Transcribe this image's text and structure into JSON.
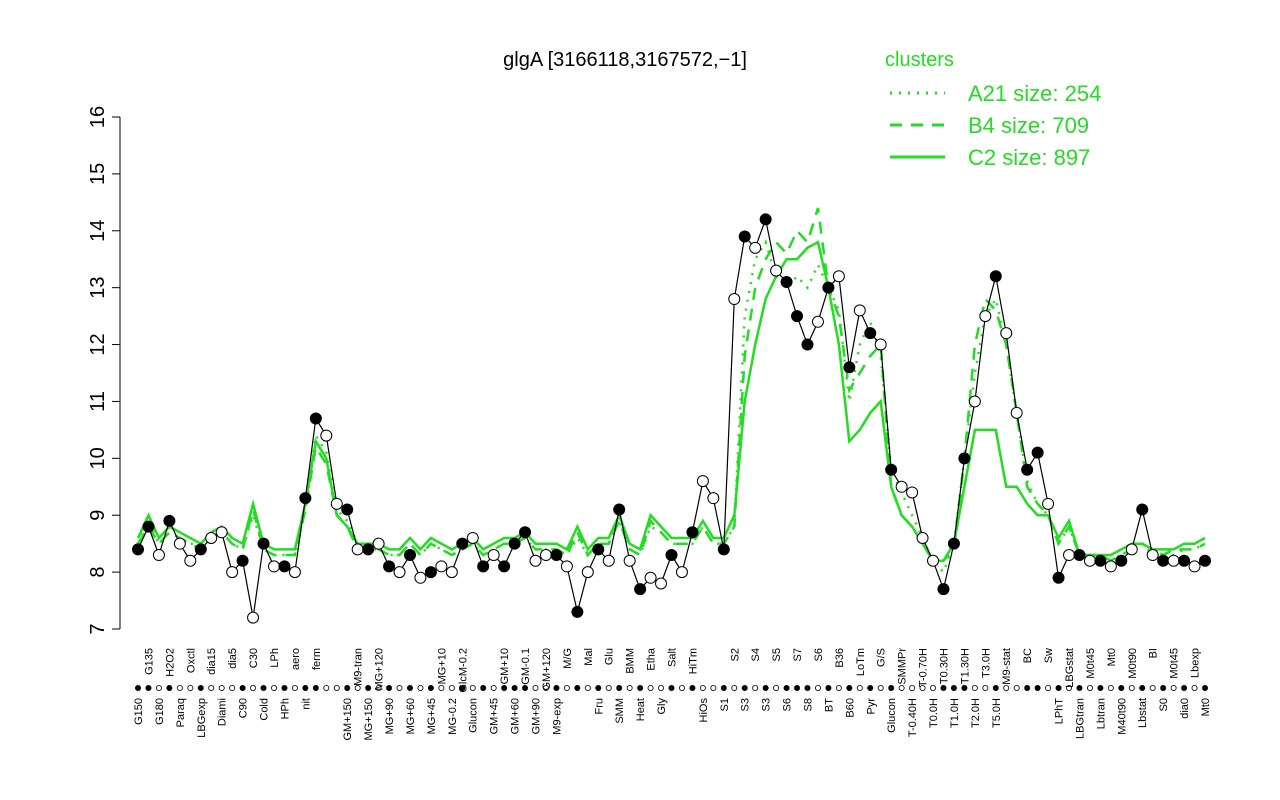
{
  "chart_data": {
    "type": "line",
    "title": "glgA [3166118,3167572,−1]",
    "ylim": [
      7,
      16
    ],
    "yticks": [
      7,
      8,
      9,
      10,
      11,
      12,
      13,
      14,
      15,
      16
    ],
    "legend_title": "clusters",
    "legend_position": "top-right",
    "categories": [
      "G150",
      "G135",
      "G180",
      "H2O2",
      "Paraq",
      "Oxctl",
      "LBGexp",
      "dia15",
      "Diami",
      "dia5",
      "C90",
      "C30",
      "Cold",
      "LPh",
      "HPh",
      "aero",
      "nit",
      "ferm",
      null,
      null,
      "GM+150",
      "M9-tran",
      "MG+150",
      "MG+120",
      "MG+90",
      null,
      "MG+60",
      null,
      "MG+45",
      "MG+10",
      "MG-0.2",
      "GlcM-0.2",
      "Glucon",
      null,
      "GM+45",
      "GM+10",
      "GM+60",
      "GM-0.1",
      "GM+90",
      "GM+120",
      "M9-exp",
      "M/G",
      null,
      "Mal",
      "Fru",
      "Glu",
      "SMM",
      "BMM",
      "Heat",
      "Etha",
      "Gly",
      "Salt",
      null,
      "HiTm",
      "HiOs",
      null,
      "S1",
      "S2",
      "S3",
      "S4",
      "S3",
      "S5",
      "S6",
      "S7",
      "S8",
      "S6",
      "BT",
      "B36",
      "B60",
      "LoTm",
      "Pyr",
      "G/S",
      "Glucon",
      "SMMPr",
      "T-0.40H",
      "T-0.70H",
      "T0.0H",
      "T0.30H",
      "T1.0H",
      "T1.30H",
      "T2.0H",
      "T3.0H",
      "T5.0H",
      "M9-stat",
      null,
      "BC",
      null,
      "Sw",
      "LPhT",
      "LBGstat",
      "LBGtran",
      "M0t45",
      "Lbtran",
      "Mt0",
      "M40t90",
      "M0t90",
      "Lbstat",
      "BI",
      "S0",
      "M0t45",
      "dia0",
      "Lbexp",
      "Mt0"
    ],
    "values": [
      8.4,
      8.8,
      8.3,
      8.9,
      8.5,
      8.2,
      8.4,
      8.6,
      8.7,
      8.0,
      8.2,
      7.2,
      8.5,
      8.1,
      8.1,
      8.0,
      9.3,
      10.7,
      10.4,
      9.2,
      9.1,
      8.4,
      8.4,
      8.5,
      8.1,
      8.0,
      8.3,
      7.9,
      8.0,
      8.1,
      8.0,
      8.5,
      8.6,
      8.1,
      8.3,
      8.1,
      8.5,
      8.7,
      8.2,
      8.3,
      8.3,
      8.1,
      7.3,
      8.0,
      8.4,
      8.2,
      9.1,
      8.2,
      7.7,
      7.9,
      7.8,
      8.3,
      8.0,
      8.7,
      9.6,
      9.3,
      8.4,
      12.8,
      13.9,
      13.7,
      14.2,
      13.3,
      13.1,
      12.5,
      12.0,
      12.4,
      13.0,
      13.2,
      11.6,
      12.6,
      12.2,
      12.0,
      9.8,
      9.5,
      9.4,
      8.6,
      8.2,
      7.7,
      8.5,
      10.0,
      11.0,
      12.5,
      13.2,
      12.2,
      10.8,
      9.8,
      10.1,
      9.2,
      7.9,
      8.3,
      8.3,
      8.2,
      8.2,
      8.1,
      8.2,
      8.4,
      9.1,
      8.3,
      8.2,
      8.2,
      8.2,
      8.1,
      8.2
    ],
    "filled": [
      1,
      1,
      0,
      1,
      0,
      0,
      1,
      0,
      0,
      0,
      1,
      0,
      1,
      0,
      1,
      0,
      1,
      1,
      0,
      0,
      1,
      0,
      1,
      0,
      1,
      0,
      1,
      0,
      1,
      0,
      0,
      1,
      0,
      1,
      0,
      1,
      1,
      1,
      0,
      0,
      1,
      0,
      1,
      0,
      1,
      0,
      1,
      0,
      1,
      0,
      0,
      1,
      0,
      1,
      0,
      0,
      1,
      0,
      1,
      0,
      1,
      0,
      1,
      1,
      1,
      0,
      1,
      0,
      1,
      0,
      1,
      0,
      1,
      0,
      0,
      0,
      0,
      1,
      1,
      1,
      0,
      0,
      1,
      0,
      0,
      1,
      1,
      0,
      1,
      0,
      1,
      0,
      1,
      0,
      1,
      0,
      1,
      0,
      1,
      0,
      1,
      0,
      1
    ],
    "color": "#000000",
    "series": [
      {
        "name": "A21 size: 254",
        "style": "dotted",
        "color": "#22dd22",
        "values": [
          8.5,
          8.9,
          8.5,
          8.7,
          8.6,
          8.5,
          8.5,
          8.6,
          8.7,
          8.5,
          8.4,
          9.0,
          8.4,
          8.3,
          8.3,
          8.3,
          9.1,
          10.4,
          10.1,
          9.1,
          8.9,
          8.5,
          8.4,
          8.4,
          8.3,
          8.3,
          8.5,
          8.3,
          8.5,
          8.4,
          8.3,
          8.4,
          8.5,
          8.3,
          8.4,
          8.5,
          8.5,
          8.6,
          8.4,
          8.4,
          8.4,
          8.3,
          8.6,
          8.3,
          8.5,
          8.5,
          8.9,
          8.4,
          8.3,
          8.8,
          8.7,
          8.5,
          8.5,
          8.5,
          8.8,
          8.5,
          8.5,
          8.8,
          12.5,
          13.5,
          13.8,
          13.2,
          13.0,
          13.2,
          13.0,
          13.4,
          13.0,
          12.6,
          11.0,
          12.0,
          12.4,
          11.8,
          9.8,
          9.4,
          9.0,
          8.6,
          8.2,
          8.0,
          8.5,
          10.0,
          11.5,
          12.5,
          12.8,
          12.0,
          10.8,
          9.6,
          9.2,
          9.0,
          8.5,
          8.8,
          8.3,
          8.3,
          8.2,
          8.2,
          8.3,
          8.4,
          8.5,
          8.3,
          8.3,
          8.3,
          8.4,
          8.4,
          8.5
        ]
      },
      {
        "name": "B4 size: 709",
        "style": "dashed",
        "color": "#22dd22",
        "values": [
          8.5,
          8.8,
          8.5,
          8.7,
          8.6,
          8.5,
          8.4,
          8.6,
          8.7,
          8.5,
          8.4,
          9.1,
          8.4,
          8.3,
          8.3,
          8.3,
          9.1,
          10.2,
          9.9,
          9.0,
          8.8,
          8.4,
          8.4,
          8.4,
          8.3,
          8.3,
          8.5,
          8.3,
          8.5,
          8.4,
          8.3,
          8.4,
          8.5,
          8.3,
          8.4,
          8.5,
          8.5,
          8.6,
          8.4,
          8.4,
          8.4,
          8.3,
          8.7,
          8.3,
          8.5,
          8.5,
          8.9,
          8.4,
          8.3,
          8.9,
          8.7,
          8.5,
          8.5,
          8.5,
          8.8,
          8.5,
          8.5,
          8.8,
          11.8,
          13.0,
          13.5,
          13.8,
          13.6,
          14.0,
          13.8,
          14.4,
          13.0,
          12.5,
          11.2,
          11.5,
          11.8,
          12.0,
          9.5,
          9.0,
          8.8,
          8.5,
          8.2,
          8.2,
          8.4,
          10.0,
          12.0,
          12.8,
          12.6,
          12.0,
          10.8,
          9.5,
          9.2,
          9.0,
          8.5,
          8.8,
          8.3,
          8.3,
          8.3,
          8.2,
          8.3,
          8.4,
          8.5,
          8.4,
          8.3,
          8.4,
          8.4,
          8.4,
          8.5
        ]
      },
      {
        "name": "C2 size: 897",
        "style": "solid",
        "color": "#22dd22",
        "values": [
          8.6,
          9.0,
          8.6,
          8.8,
          8.7,
          8.6,
          8.5,
          8.7,
          8.8,
          8.6,
          8.5,
          9.2,
          8.5,
          8.4,
          8.4,
          8.4,
          9.2,
          10.3,
          10.0,
          9.0,
          8.8,
          8.5,
          8.5,
          8.5,
          8.4,
          8.4,
          8.6,
          8.4,
          8.6,
          8.5,
          8.4,
          8.5,
          8.6,
          8.4,
          8.5,
          8.6,
          8.6,
          8.7,
          8.5,
          8.5,
          8.5,
          8.4,
          8.8,
          8.4,
          8.6,
          8.6,
          9.0,
          8.5,
          8.4,
          9.0,
          8.8,
          8.6,
          8.6,
          8.6,
          8.9,
          8.6,
          8.6,
          9.0,
          11.0,
          12.0,
          12.8,
          13.2,
          13.5,
          13.5,
          13.7,
          13.8,
          13.0,
          12.0,
          10.3,
          10.5,
          10.8,
          11.0,
          9.5,
          9.0,
          8.8,
          8.5,
          8.2,
          8.2,
          8.5,
          9.5,
          10.5,
          10.5,
          10.5,
          9.5,
          9.5,
          9.2,
          9.0,
          9.0,
          8.6,
          8.9,
          8.3,
          8.3,
          8.3,
          8.3,
          8.4,
          8.5,
          8.5,
          8.4,
          8.4,
          8.4,
          8.5,
          8.5,
          8.6
        ]
      }
    ]
  }
}
